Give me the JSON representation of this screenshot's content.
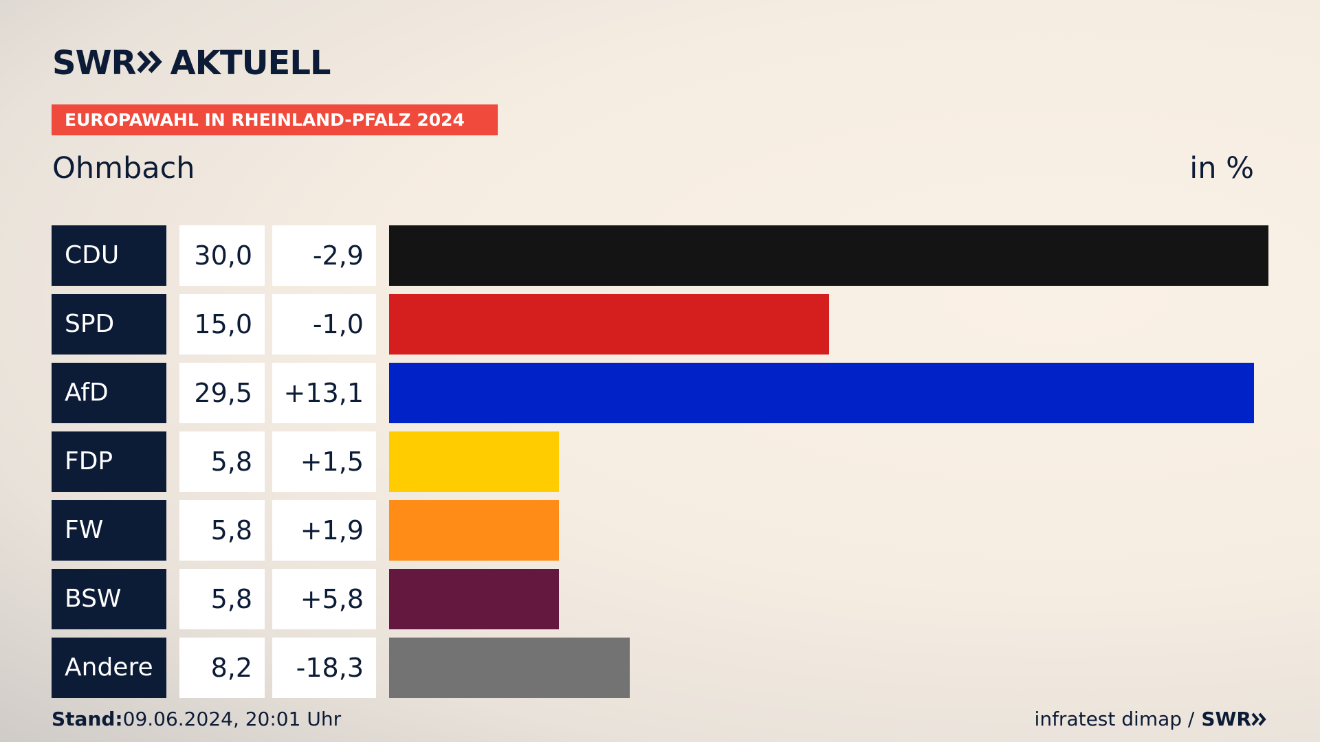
{
  "header": {
    "logo_text": "SWR",
    "logo_suffix": "AKTUELL",
    "banner": "EUROPAWAHL IN RHEINLAND-PFALZ 2024",
    "location": "Ohmbach",
    "unit": "in %"
  },
  "chart_data": {
    "type": "bar",
    "orientation": "horizontal",
    "categories": [
      "CDU",
      "SPD",
      "AfD",
      "FDP",
      "FW",
      "BSW",
      "Andere"
    ],
    "values": [
      30.0,
      15.0,
      29.5,
      5.8,
      5.8,
      5.8,
      8.2
    ],
    "value_labels": [
      "30,0",
      "15,0",
      "29,5",
      "5,8",
      "5,8",
      "5,8",
      "8,2"
    ],
    "changes": [
      "-2,9",
      "-1,0",
      "+13,1",
      "+1,5",
      "+1,9",
      "+5,8",
      "-18,3"
    ],
    "colors": [
      "#141414",
      "#d51f1f",
      "#0022c6",
      "#ffcc00",
      "#ff8c17",
      "#65183f",
      "#737373"
    ],
    "xlim": [
      0,
      30
    ],
    "grid": false
  },
  "footer": {
    "stand_label": "Stand:",
    "stand_value": "09.06.2024, 20:01 Uhr",
    "source": "infratest dimap /",
    "brand": "SWR"
  }
}
